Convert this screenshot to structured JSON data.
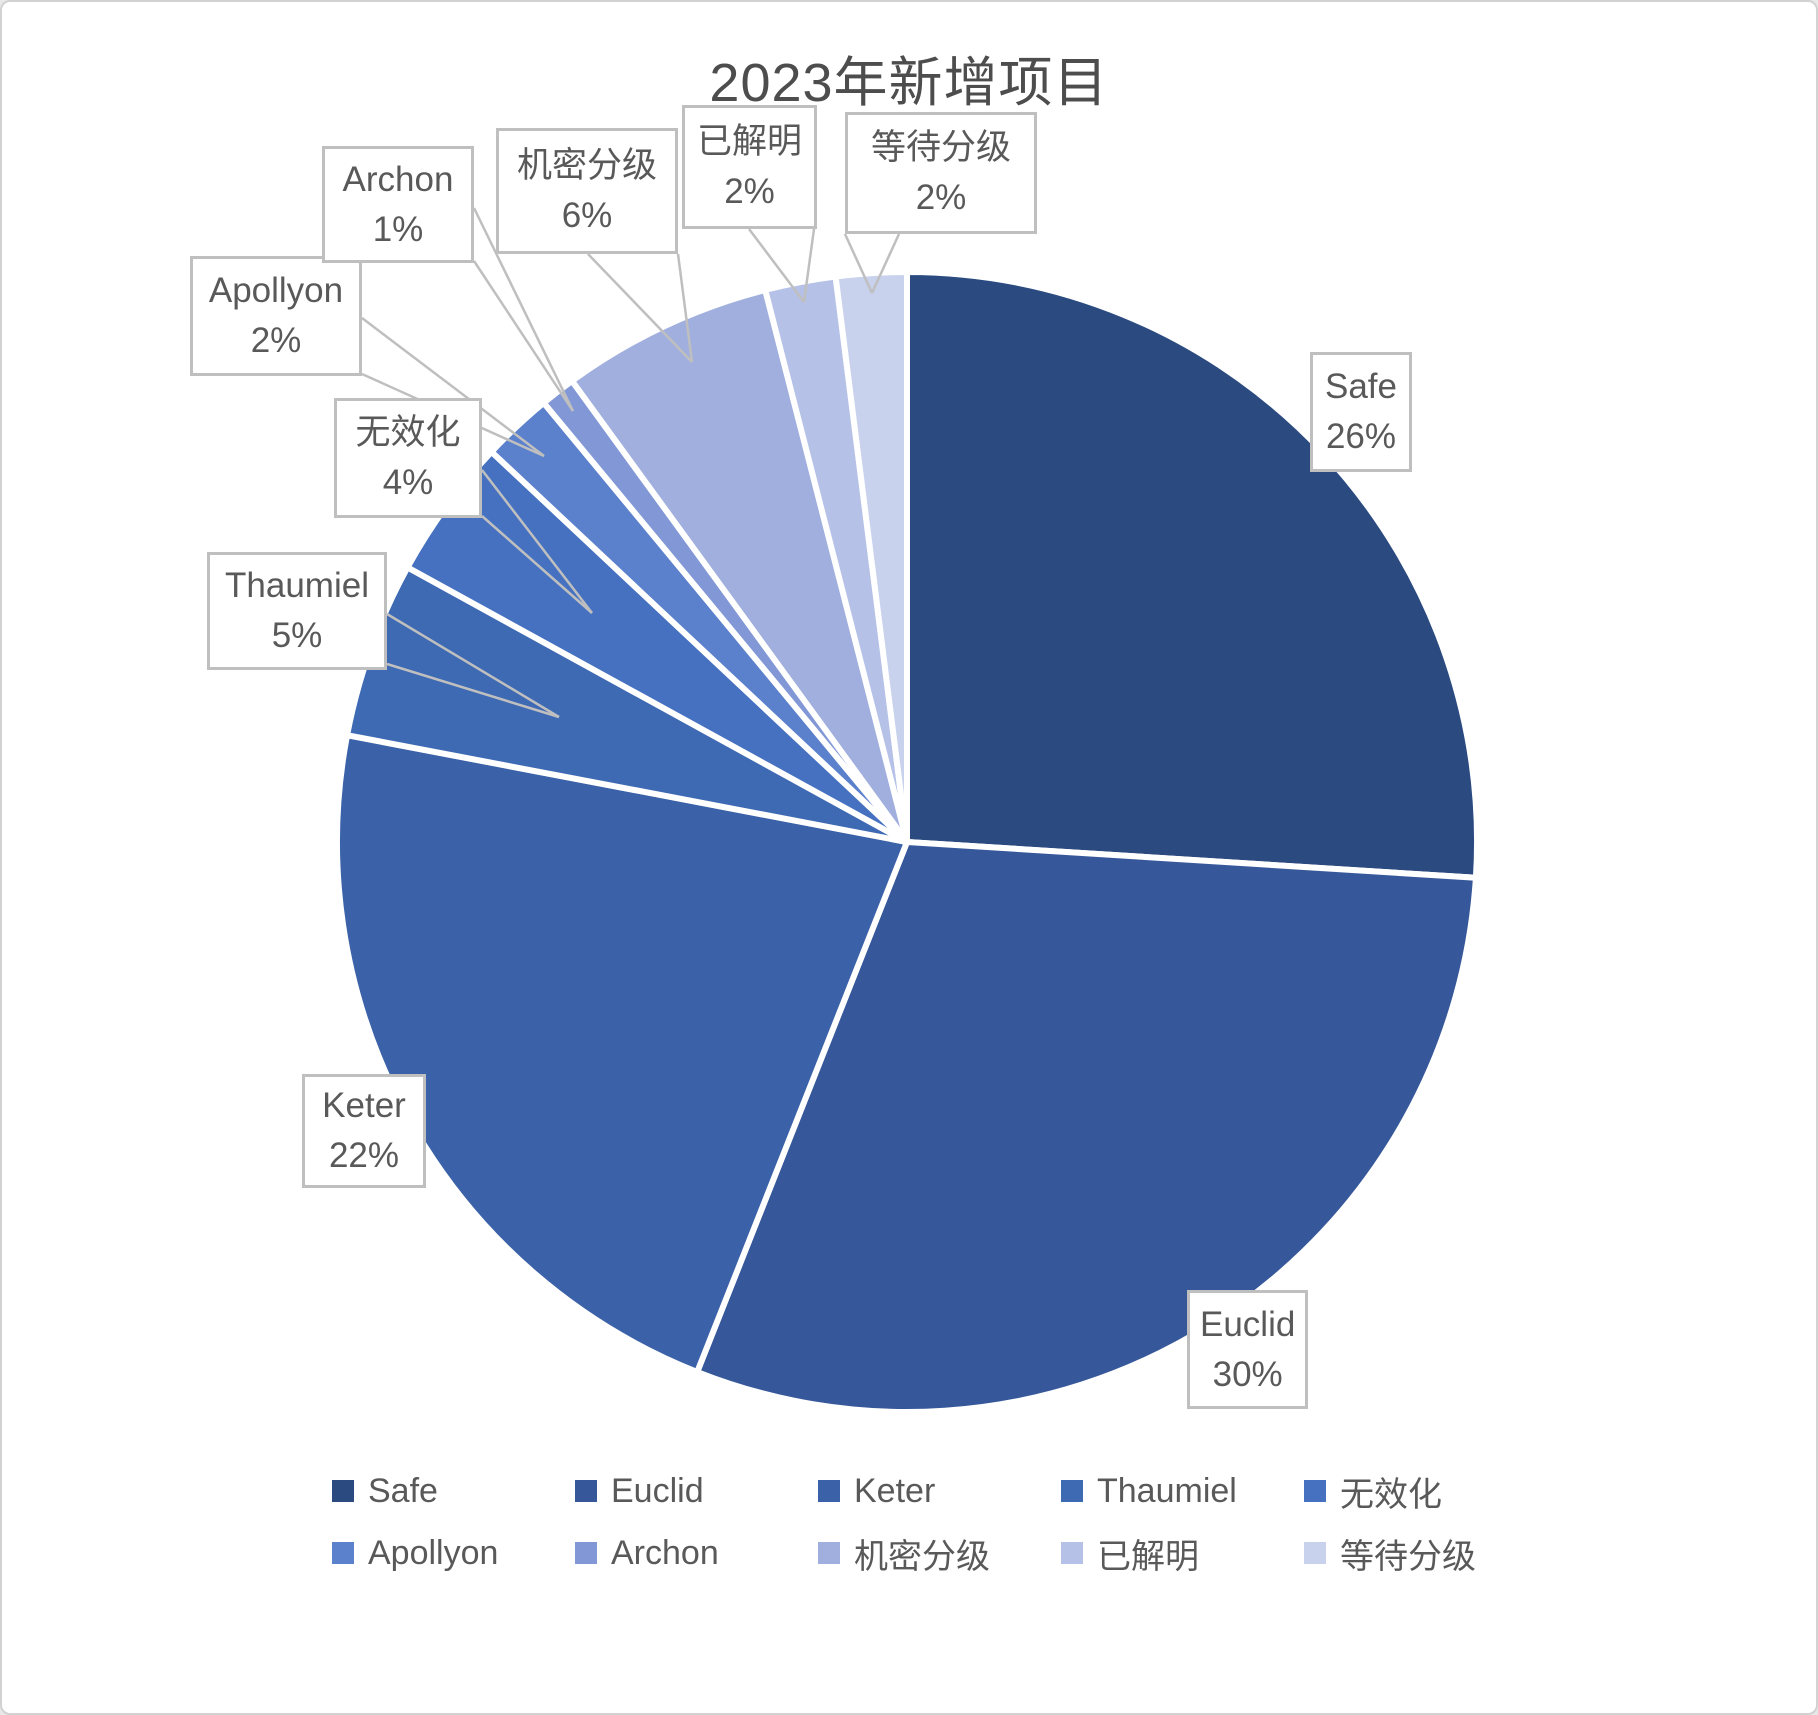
{
  "title": "2023年新增项目",
  "chart_data": {
    "type": "pie",
    "title": "2023年新增项目",
    "categories": [
      "Safe",
      "Euclid",
      "Keter",
      "Thaumiel",
      "无效化",
      "Apollyon",
      "Archon",
      "机密分级",
      "已解明",
      "等待分级"
    ],
    "values": [
      26,
      30,
      22,
      5,
      4,
      2,
      1,
      6,
      2,
      2
    ],
    "unit": "percent",
    "colors": [
      "#2A4A80",
      "#36589A",
      "#3B62A8",
      "#3E69B3",
      "#4571C0",
      "#5B80CC",
      "#8298D6",
      "#A0AFDD",
      "#B6C1E7",
      "#C9D2ED"
    ],
    "start_angle_deg": 0,
    "direction": "clockwise",
    "slice_separator_color": "#FFFFFF",
    "data_label_format": "category name + percent in white callout boxes with gray leader lines",
    "legend_position": "bottom",
    "legend_rows": [
      [
        "Safe",
        "Euclid",
        "Keter",
        "Thaumiel",
        "无效化"
      ],
      [
        "Apollyon",
        "Archon",
        "机密分级",
        "已解明",
        "等待分级"
      ]
    ],
    "text_color": "#595959",
    "callout_border_color": "#BFBFBF"
  }
}
